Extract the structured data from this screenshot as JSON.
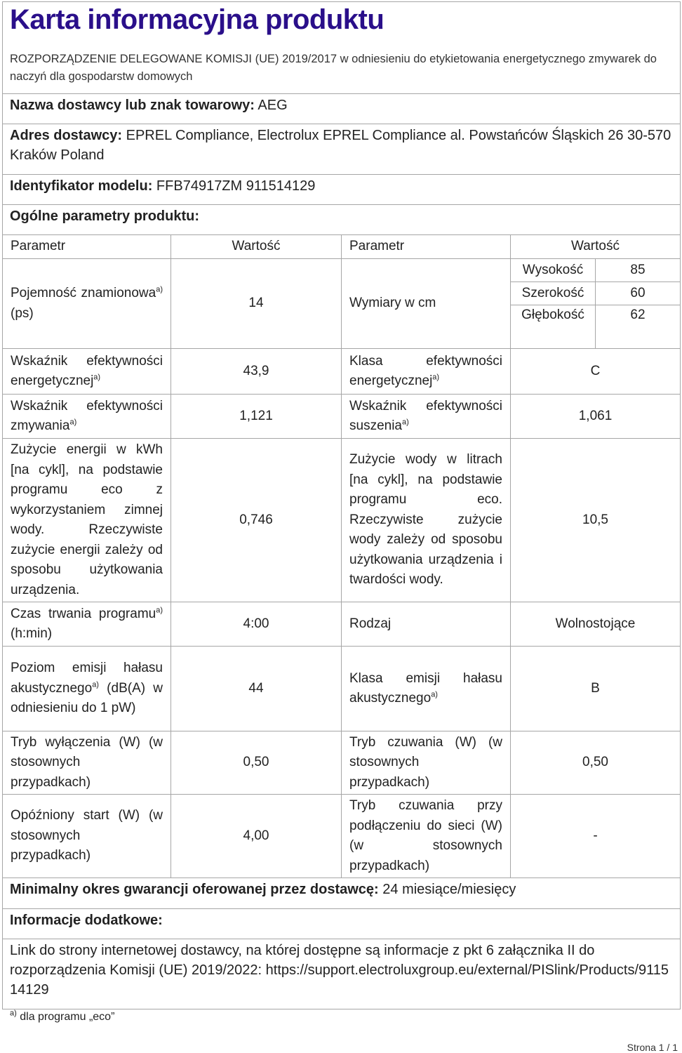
{
  "title": "Karta informacyjna produktu",
  "regulation": "ROZPORZĄDZENIE DELEGOWANE KOMISJI (UE) 2019/2017 w odniesieniu do etykietowania energetycznego zmywarek do naczyń dla gospodarstw domowych",
  "supplier": {
    "label": "Nazwa dostawcy lub znak towarowy:",
    "value": "AEG"
  },
  "address": {
    "label": "Adres dostawcy:",
    "value": "EPREL Compliance, Electrolux EPREL Compliance al. Powstańców Śląskich 26 30-570 Kraków Poland"
  },
  "model": {
    "label": "Identyfikator modelu:",
    "value": "FFB74917ZM 911514129"
  },
  "general": {
    "label": "Ogólne parametry produktu:"
  },
  "table": {
    "headers": [
      "Parametr",
      "Wartość",
      "Parametr",
      "Wartość"
    ],
    "sup": "a)",
    "capacity": {
      "label": "Pojemność znamionowa",
      "unit": "(ps)",
      "value": "14"
    },
    "dimensions": {
      "label": "Wymiary w cm",
      "height_label": "Wysokość",
      "height": "85",
      "width_label": "Szerokość",
      "width": "60",
      "depth_label": "Głębokość",
      "depth": "62"
    },
    "eei": {
      "label": "Wskaźnik efektywności energetycznej",
      "value": "43,9"
    },
    "energy_class": {
      "label": "Klasa efektywności energetycznej",
      "value": "C"
    },
    "cleaning": {
      "label": "Wskaźnik efektywności zmywania",
      "value": "1,121"
    },
    "drying": {
      "label": "Wskaźnik efektywności suszenia",
      "value": "1,061"
    },
    "energy": {
      "label": "Zużycie energii w kWh [na cykl], na podstawie programu eco z wykorzystaniem zimnej wody. Rzeczywiste zużycie energii zależy od sposobu użytkowania urządzenia.",
      "value": "0,746"
    },
    "water": {
      "label": "Zużycie wody w litrach [na cykl], na podstawie programu eco. Rzeczywiste zużycie wody zależy od sposobu użytkowania urządzenia i twardości wody.",
      "value": "10,5"
    },
    "duration": {
      "label": "Czas trwania programu",
      "unit": "(h:min)",
      "value": "4:00"
    },
    "type": {
      "label": "Rodzaj",
      "value": "Wolnostojące"
    },
    "noise": {
      "label": "Poziom emisji hałasu akustycznego",
      "unit": "(dB(A) w odniesieniu do 1 pW)",
      "value": "44"
    },
    "noise_class": {
      "label": "Klasa emisji hałasu akustycznego",
      "value": "B"
    },
    "off_mode": {
      "label": "Tryb wyłączenia (W) (w stosownych przypadkach)",
      "value": "0,50"
    },
    "standby": {
      "label": "Tryb czuwania (W) (w stosownych przypadkach)",
      "value": "0,50"
    },
    "delay_start": {
      "label": "Opóźniony start (W) (w stosownych przypadkach)",
      "value": "4,00"
    },
    "networked_standby": {
      "label": "Tryb czuwania przy podłączeniu do sieci (W) (w stosownych przypadkach)",
      "value": "-"
    }
  },
  "warranty": {
    "label": "Minimalny okres gwarancji oferowanej przez dostawcę:",
    "value": "24 miesiące/miesięcy"
  },
  "additional": {
    "label": "Informacje dodatkowe:"
  },
  "link": {
    "text": "Link do strony internetowej dostawcy, na której dostępne są informacje z pkt 6 załącznika II do rozporządzenia Komisji (UE) 2019/2022:",
    "url": "https://support.electroluxgroup.eu/external/PISlink/Products/911514129"
  },
  "footnote": {
    "mark": "a)",
    "text": "dla programu „eco”"
  },
  "page": "Strona 1 / 1"
}
